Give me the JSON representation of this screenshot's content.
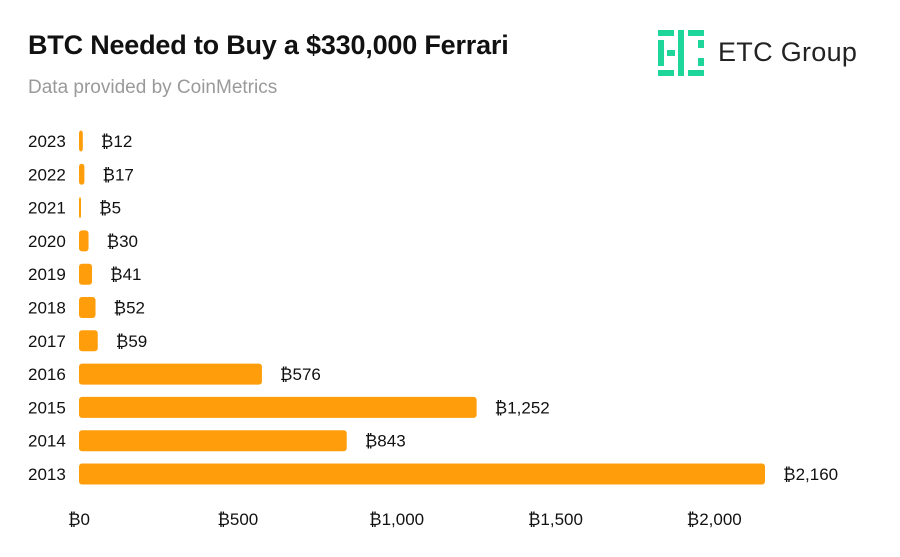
{
  "header": {
    "title": "BTC Needed to Buy a $330,000 Ferrari",
    "subtitle": "Data provided by CoinMetrics"
  },
  "logo": {
    "text": "ETC Group",
    "icon": "etc-group-logo-icon",
    "color": "#1ed69a"
  },
  "chart_data": {
    "type": "bar",
    "orientation": "horizontal",
    "categories": [
      "2023",
      "2022",
      "2021",
      "2020",
      "2019",
      "2018",
      "2017",
      "2016",
      "2015",
      "2014",
      "2013"
    ],
    "values": [
      12,
      17,
      5,
      30,
      41,
      52,
      59,
      576,
      1252,
      843,
      2160
    ],
    "data_labels": [
      "₿12",
      "₿17",
      "₿5",
      "₿30",
      "₿41",
      "₿52",
      "₿59",
      "₿576",
      "₿1,252",
      "₿843",
      "₿2,160"
    ],
    "xlim": [
      0,
      2160
    ],
    "x_ticks": [
      0,
      500,
      1000,
      1500,
      2000
    ],
    "x_tick_labels": [
      "₿0",
      "₿500",
      "₿1,000",
      "₿1,500",
      "₿2,000"
    ],
    "bar_color": "#ff9d0a",
    "grid": false,
    "legend": "none"
  }
}
